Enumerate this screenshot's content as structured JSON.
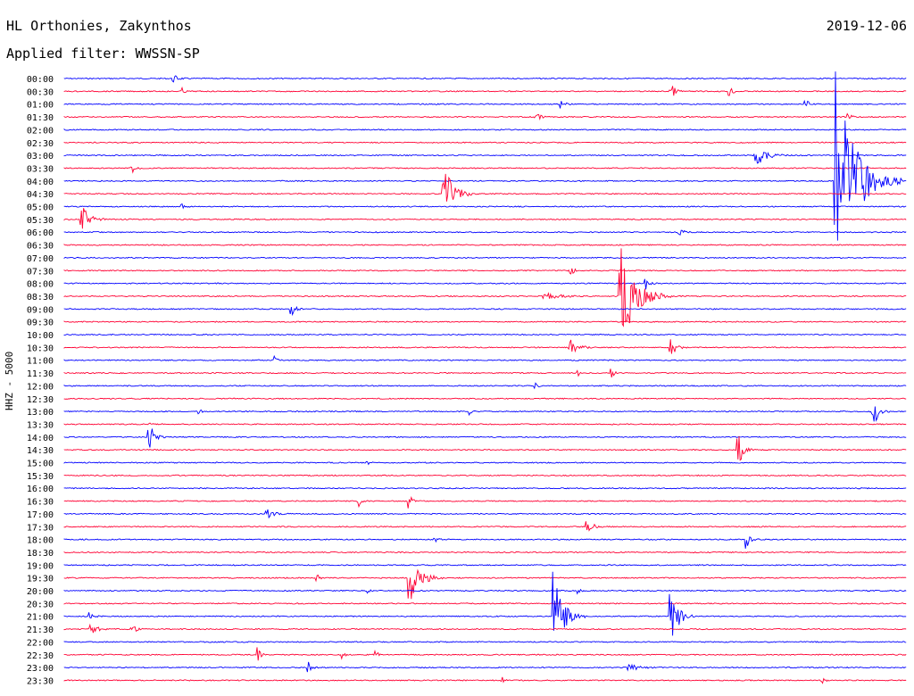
{
  "header": {
    "station": "HL Orthonies, Zakynthos",
    "filter": "Applied filter: WWSSN-SP",
    "date": "2019-12-06",
    "channel": "HHZ - 5000"
  },
  "colors": {
    "odd": "#0000ff",
    "even": "#ff0033"
  },
  "chart_data": {
    "type": "line",
    "title": "HL Orthonies, Zakynthos",
    "subtitle": "Applied filter: WWSSN-SP",
    "ylabel": "HHZ - 5000",
    "row_labels": [
      "00:00",
      "00:30",
      "01:00",
      "01:30",
      "02:00",
      "02:30",
      "03:00",
      "03:30",
      "04:00",
      "04:30",
      "05:00",
      "05:30",
      "06:00",
      "06:30",
      "07:00",
      "07:30",
      "08:00",
      "08:30",
      "09:00",
      "09:30",
      "10:00",
      "10:30",
      "11:00",
      "11:30",
      "12:00",
      "12:30",
      "13:00",
      "13:30",
      "14:00",
      "14:30",
      "15:00",
      "15:30",
      "16:00",
      "16:30",
      "17:00",
      "17:30",
      "18:00",
      "18:30",
      "19:00",
      "19:30",
      "20:00",
      "20:30",
      "21:00",
      "21:30",
      "22:00",
      "22:30",
      "23:00",
      "23:30"
    ],
    "events": [
      {
        "row": 0,
        "x": 0.13,
        "amp": 0.3,
        "dur": 0.02
      },
      {
        "row": 1,
        "x": 0.14,
        "amp": 0.25,
        "dur": 0.01
      },
      {
        "row": 1,
        "x": 0.72,
        "amp": 0.6,
        "dur": 0.02
      },
      {
        "row": 1,
        "x": 0.79,
        "amp": 0.4,
        "dur": 0.015
      },
      {
        "row": 2,
        "x": 0.59,
        "amp": 0.3,
        "dur": 0.015
      },
      {
        "row": 2,
        "x": 0.88,
        "amp": 0.4,
        "dur": 0.015
      },
      {
        "row": 3,
        "x": 0.56,
        "amp": 0.3,
        "dur": 0.02
      },
      {
        "row": 3,
        "x": 0.93,
        "amp": 0.3,
        "dur": 0.015
      },
      {
        "row": 6,
        "x": 0.82,
        "amp": 1.0,
        "dur": 0.04
      },
      {
        "row": 7,
        "x": 0.08,
        "amp": 0.5,
        "dur": 0.015
      },
      {
        "row": 8,
        "x": 0.915,
        "amp": 9.0,
        "dur": 0.08
      },
      {
        "row": 9,
        "x": 0.45,
        "amp": 2.5,
        "dur": 0.04
      },
      {
        "row": 10,
        "x": 0.14,
        "amp": 0.3,
        "dur": 0.01
      },
      {
        "row": 11,
        "x": 0.02,
        "amp": 1.4,
        "dur": 0.03
      },
      {
        "row": 12,
        "x": 0.73,
        "amp": 0.3,
        "dur": 0.02
      },
      {
        "row": 15,
        "x": 0.6,
        "amp": 0.6,
        "dur": 0.015
      },
      {
        "row": 16,
        "x": 0.69,
        "amp": 0.5,
        "dur": 0.015
      },
      {
        "row": 17,
        "x": 0.66,
        "amp": 4.5,
        "dur": 0.06
      },
      {
        "row": 17,
        "x": 0.57,
        "amp": 0.3,
        "dur": 0.06
      },
      {
        "row": 18,
        "x": 0.27,
        "amp": 0.6,
        "dur": 0.015
      },
      {
        "row": 21,
        "x": 0.6,
        "amp": 0.7,
        "dur": 0.03
      },
      {
        "row": 21,
        "x": 0.72,
        "amp": 0.8,
        "dur": 0.02
      },
      {
        "row": 22,
        "x": 0.25,
        "amp": 0.3,
        "dur": 0.01
      },
      {
        "row": 23,
        "x": 0.65,
        "amp": 0.6,
        "dur": 0.01
      },
      {
        "row": 23,
        "x": 0.61,
        "amp": 0.3,
        "dur": 0.01
      },
      {
        "row": 24,
        "x": 0.56,
        "amp": 0.2,
        "dur": 0.01
      },
      {
        "row": 26,
        "x": 0.16,
        "amp": 0.3,
        "dur": 0.02
      },
      {
        "row": 26,
        "x": 0.48,
        "amp": 0.3,
        "dur": 0.01
      },
      {
        "row": 26,
        "x": 0.96,
        "amp": 1.4,
        "dur": 0.02
      },
      {
        "row": 27,
        "x": 0.1,
        "amp": 0.2,
        "dur": 0.01
      },
      {
        "row": 28,
        "x": 0.1,
        "amp": 1.5,
        "dur": 0.02
      },
      {
        "row": 29,
        "x": 0.8,
        "amp": 1.4,
        "dur": 0.02
      },
      {
        "row": 30,
        "x": 0.36,
        "amp": 0.2,
        "dur": 0.01
      },
      {
        "row": 33,
        "x": 0.35,
        "amp": 0.5,
        "dur": 0.01
      },
      {
        "row": 33,
        "x": 0.41,
        "amp": 0.7,
        "dur": 0.015
      },
      {
        "row": 34,
        "x": 0.24,
        "amp": 0.4,
        "dur": 0.03
      },
      {
        "row": 35,
        "x": 0.62,
        "amp": 1.0,
        "dur": 0.02
      },
      {
        "row": 36,
        "x": 0.44,
        "amp": 0.3,
        "dur": 0.01
      },
      {
        "row": 36,
        "x": 0.81,
        "amp": 0.7,
        "dur": 0.015
      },
      {
        "row": 39,
        "x": 0.3,
        "amp": 0.3,
        "dur": 0.01
      },
      {
        "row": 39,
        "x": 0.41,
        "amp": 2.5,
        "dur": 0.04
      },
      {
        "row": 40,
        "x": 0.36,
        "amp": 0.2,
        "dur": 0.01
      },
      {
        "row": 40,
        "x": 0.61,
        "amp": 0.3,
        "dur": 0.01
      },
      {
        "row": 42,
        "x": 0.58,
        "amp": 3.6,
        "dur": 0.04
      },
      {
        "row": 42,
        "x": 0.72,
        "amp": 2.5,
        "dur": 0.03
      },
      {
        "row": 42,
        "x": 0.03,
        "amp": 0.3,
        "dur": 0.02
      },
      {
        "row": 43,
        "x": 0.03,
        "amp": 0.9,
        "dur": 0.02
      },
      {
        "row": 43,
        "x": 0.08,
        "amp": 0.5,
        "dur": 0.015
      },
      {
        "row": 45,
        "x": 0.23,
        "amp": 0.8,
        "dur": 0.01
      },
      {
        "row": 45,
        "x": 0.33,
        "amp": 0.4,
        "dur": 0.01
      },
      {
        "row": 45,
        "x": 0.37,
        "amp": 0.3,
        "dur": 0.01
      },
      {
        "row": 46,
        "x": 0.29,
        "amp": 0.5,
        "dur": 0.015
      },
      {
        "row": 46,
        "x": 0.67,
        "amp": 0.3,
        "dur": 0.04
      },
      {
        "row": 47,
        "x": 0.52,
        "amp": 0.3,
        "dur": 0.01
      },
      {
        "row": 47,
        "x": 0.9,
        "amp": 0.3,
        "dur": 0.01
      }
    ],
    "grid": false,
    "legend": "none"
  }
}
